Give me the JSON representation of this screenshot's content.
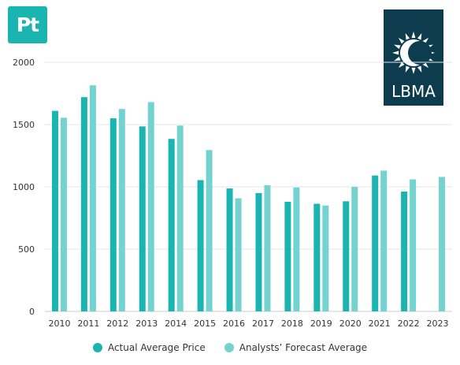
{
  "badge": {
    "label": "Pt"
  },
  "logo": {
    "text": "LBMA"
  },
  "colors": {
    "actual": "#1ab5b0",
    "forecast": "#74d3d0"
  },
  "legend": {
    "actual_label": "Actual Average Price",
    "forecast_label": "Analysts’ Forecast Average"
  },
  "chart_data": {
    "type": "bar",
    "categories": [
      "2010",
      "2011",
      "2012",
      "2013",
      "2014",
      "2015",
      "2016",
      "2017",
      "2018",
      "2019",
      "2020",
      "2021",
      "2022",
      "2023"
    ],
    "series": [
      {
        "name": "Actual Average Price",
        "values": [
          1610,
          1720,
          1550,
          1485,
          1385,
          1054,
          987,
          950,
          880,
          864,
          884,
          1091,
          962,
          null
        ]
      },
      {
        "name": "Analysts’ Forecast Average",
        "values": [
          1555,
          1815,
          1625,
          1680,
          1492,
          1295,
          908,
          1013,
          995,
          850,
          1000,
          1130,
          1060,
          1080
        ]
      }
    ],
    "ylim": [
      0,
      2000
    ],
    "yticks": [
      0,
      500,
      1000,
      1500,
      2000
    ],
    "grid": true,
    "legend_position": "bottom"
  }
}
